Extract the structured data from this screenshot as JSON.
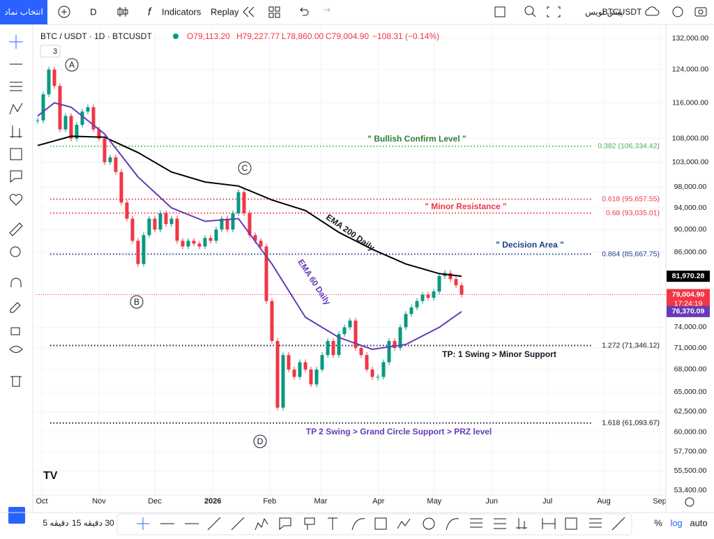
{
  "toolbar": {
    "symbol_search": "انتخاب نماد",
    "interval": "D",
    "indicators": "Indicators",
    "replay": "Replay",
    "draft": "پیش نویس",
    "ticker": "BTCUSDT"
  },
  "legend": {
    "title": "BTC / USDT · 1D · BTCUSDT",
    "open": "O79,113.20",
    "high": "H79,227.77",
    "low": "L78,860.00",
    "close": "C79,004.90",
    "change": "−108.31 (−0.14%)",
    "indicator_count": "3"
  },
  "chart_data": {
    "type": "candlestick",
    "values": [
      112000,
      118000,
      124000,
      120000,
      110000,
      113000,
      108000,
      111000,
      114000,
      115000,
      110000,
      108000,
      103000,
      104000,
      101000,
      95000,
      92000,
      88000,
      84000,
      89000,
      92000,
      90000,
      93000,
      91000,
      92000,
      88000,
      87000,
      88000,
      87500,
      87000,
      88500,
      88000,
      90000,
      92000,
      90000,
      93000,
      97000,
      93000,
      89000,
      88000,
      87000,
      78000,
      72000,
      63000,
      70000,
      68000,
      67000,
      69000,
      68000,
      66000,
      68000,
      70000,
      72000,
      70000,
      73000,
      74000,
      75000,
      71000,
      70000,
      68000,
      67000,
      67000,
      69000,
      72000,
      71000,
      74000,
      76000,
      77000,
      78000,
      79000,
      78500,
      79500,
      82000,
      82500,
      81500,
      80500,
      79004.9
    ],
    "up_color": "#089981",
    "down_color": "#f23645",
    "xlim": [
      -0.5,
      112
    ],
    "xticks": [
      {
        "value": 0.75,
        "label": "Oct"
      },
      {
        "value": 11,
        "label": "Nov"
      },
      {
        "value": 21,
        "label": "Dec"
      },
      {
        "value": 31.4,
        "label": "2026"
      },
      {
        "value": 41.6,
        "label": "Feb"
      },
      {
        "value": 50.75,
        "label": "Mar"
      },
      {
        "value": 61.1,
        "label": "Apr"
      },
      {
        "value": 71.1,
        "label": "May"
      },
      {
        "value": 81.4,
        "label": "Jun"
      },
      {
        "value": 91.4,
        "label": "Jul"
      },
      {
        "value": 101.5,
        "label": "Aug"
      },
      {
        "value": 111.5,
        "label": "Sep"
      }
    ],
    "ylim": [
      52880,
      135170
    ],
    "log_scale": true,
    "grid": true,
    "yticks": [
      {
        "value": 132000,
        "label": "132,000.00"
      },
      {
        "value": 124000,
        "label": "124,000.00"
      },
      {
        "value": 116000,
        "label": "116,000.00"
      },
      {
        "value": 108000,
        "label": "108,000.00"
      },
      {
        "value": 103000,
        "label": "103,000.00"
      },
      {
        "value": 98000,
        "label": "98,000.00"
      },
      {
        "value": 94000,
        "label": "94,000.00"
      },
      {
        "value": 90000,
        "label": "90,000.00"
      },
      {
        "value": 86000,
        "label": "86,000.00"
      },
      {
        "value": 74000,
        "label": "74,000.00"
      },
      {
        "value": 71000,
        "label": "71,000.00"
      },
      {
        "value": 68000,
        "label": "68,000.00"
      },
      {
        "value": 65000,
        "label": "65,000.00"
      },
      {
        "value": 62500,
        "label": "62,500.00"
      },
      {
        "value": 60000,
        "label": "60,000.00"
      },
      {
        "value": 57700,
        "label": "57,700.00"
      },
      {
        "value": 55500,
        "label": "55,500.00"
      },
      {
        "value": 53400,
        "label": "53,400.00"
      }
    ],
    "series": [
      {
        "name": "EMA 200 Daily",
        "color": "#000000",
        "x": [
          0,
          6,
          12,
          18,
          24,
          30,
          36,
          42,
          48,
          54,
          60,
          66,
          72,
          76
        ],
        "values": [
          106500,
          108500,
          108300,
          105000,
          101000,
          99000,
          98200,
          95500,
          93500,
          89500,
          86500,
          84000,
          82400,
          81970.28
        ]
      },
      {
        "name": "EMA 60 Daily",
        "color": "#673ab7",
        "x": [
          0,
          3,
          6,
          12,
          18,
          24,
          30,
          36,
          42,
          48,
          54,
          60,
          66,
          72,
          76
        ],
        "values": [
          113000,
          116000,
          115000,
          109000,
          100000,
          94000,
          91500,
          92000,
          84000,
          75500,
          72500,
          70800,
          71500,
          74000,
          76370.09
        ]
      }
    ],
    "levels": [
      {
        "label": "0.382 (106,334.42)",
        "value": 106334.42,
        "color": "#4caf50",
        "note": "\" Bullish Confirm Level \"",
        "note_color": "#2e7d32"
      },
      {
        "label": "0.618 (95,657.55)",
        "value": 95657.55,
        "color": "#f23645",
        "note": null,
        "note_color": "#f23645"
      },
      {
        "label": "0.68 (93,035.01)",
        "value": 93035.01,
        "color": "#f23645",
        "note": "\" Minor Resistance \"",
        "note_color": "#f23645"
      },
      {
        "label": "0.864 (85,667.75)",
        "value": 85667.75,
        "color": "#1e3f8a",
        "note": "\" Decision Area  \"",
        "note_color": "#1e3f8a"
      },
      {
        "label": "1.272 (71,346.12)",
        "value": 71346.12,
        "color": "#131722",
        "note": "TP: 1 Swing > Minor Support",
        "note_color": "#131722"
      },
      {
        "label": "1.618 (61,093.67)",
        "value": 61093.67,
        "color": "#131722",
        "note": "TP 2 Swing > Grand Circle Support > PRZ level",
        "note_color": "#673ab7"
      }
    ],
    "price_badges": [
      {
        "label": "81,970.28",
        "value": 81970.28,
        "color": "#000000",
        "countdown": null
      },
      {
        "label": "79,004.90",
        "value": 79004.9,
        "color": "#f23645",
        "countdown": "17:24:19"
      },
      {
        "label": "76,370.09",
        "value": 76370.09,
        "color": "#673ab7",
        "countdown": null
      }
    ],
    "annotations": [
      "A",
      "B",
      "C",
      "D"
    ]
  },
  "bottom_bar": {
    "ranges": [
      "5 دقیقه",
      "15 دقیقه",
      "30"
    ],
    "percent": "%",
    "log": "log",
    "auto": "auto"
  }
}
